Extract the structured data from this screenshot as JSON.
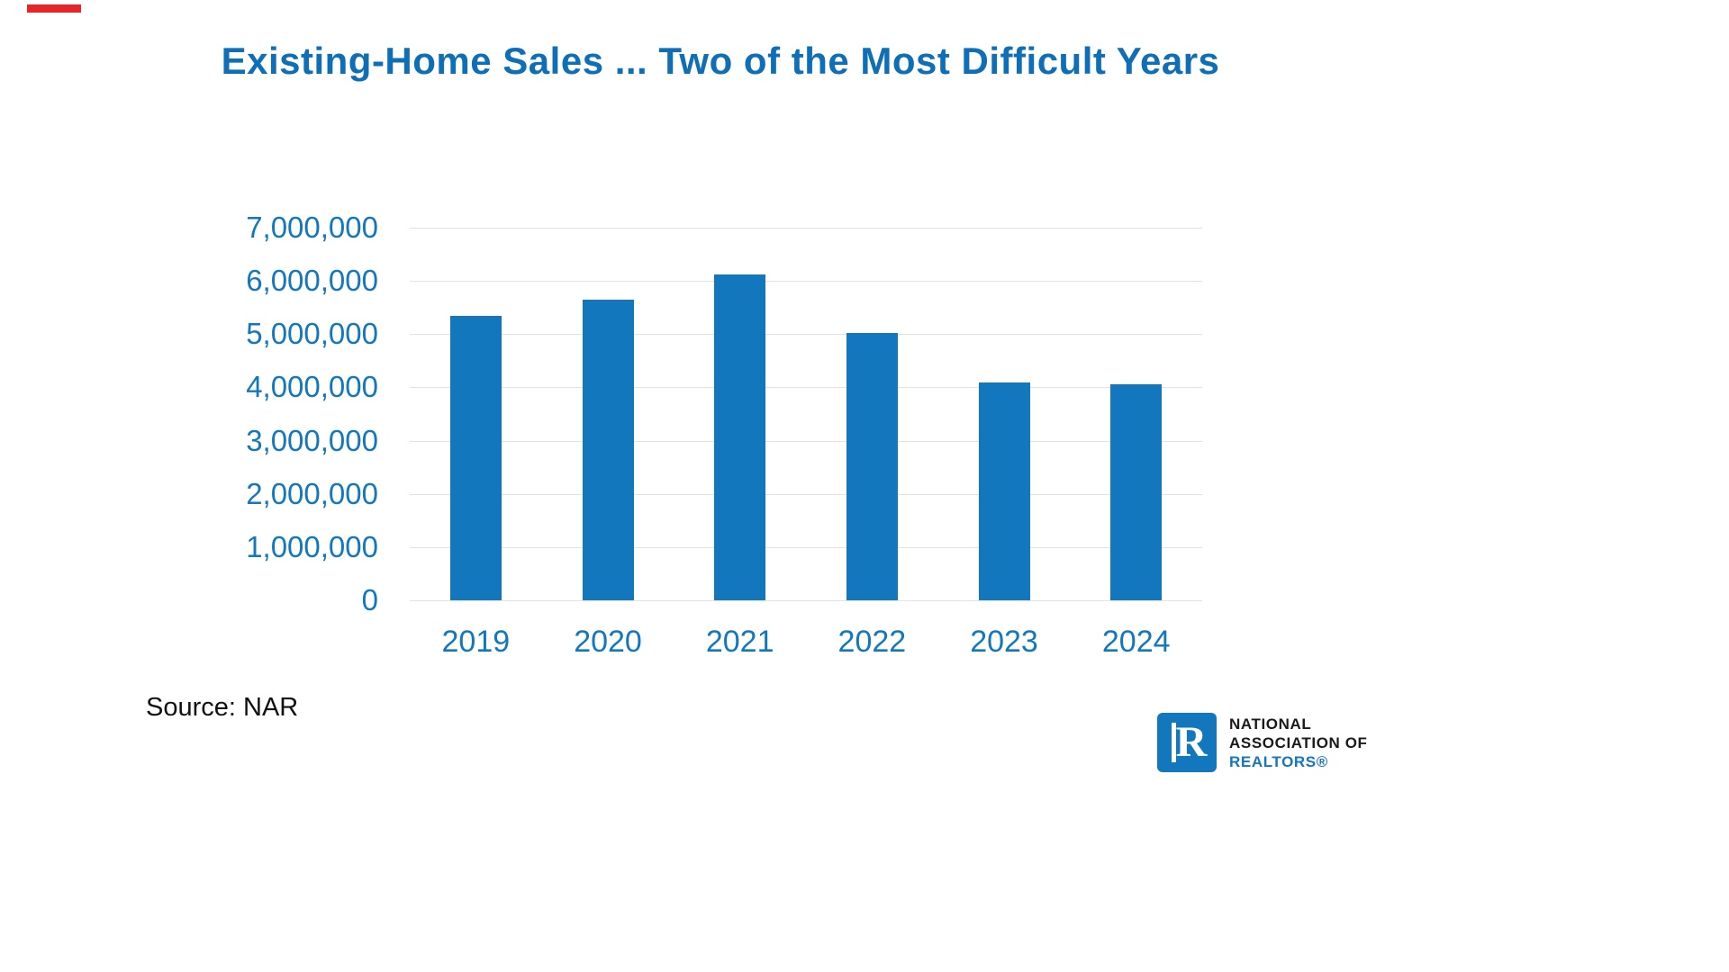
{
  "title": "Existing-Home Sales ... Two of the Most Difficult Years",
  "source": "Source: NAR",
  "logo": {
    "letter": "R",
    "line1": "NATIONAL",
    "line2": "ASSOCIATION OF",
    "line3": "REALTORS®"
  },
  "colors": {
    "bar": "#1277bd",
    "title": "#0e6fb7",
    "axis_label": "#1277bd",
    "gridline": "#e2e2e2",
    "red_accent": "#e8252a",
    "logo_blue": "#1277bd"
  },
  "chart_data": {
    "type": "bar",
    "title": "Existing-Home Sales ... Two of the Most Difficult Years",
    "categories": [
      "2019",
      "2020",
      "2021",
      "2022",
      "2023",
      "2024"
    ],
    "values": [
      5340000,
      5640000,
      6120000,
      5030000,
      4090000,
      4060000
    ],
    "xlabel": "",
    "ylabel": "",
    "ylim": [
      0,
      7000000
    ],
    "ytick_step": 1000000,
    "ytick_labels": [
      "7,000,000",
      "6,000,000",
      "5,000,000",
      "4,000,000",
      "3,000,000",
      "2,000,000",
      "1,000,000",
      "0"
    ],
    "grid": true,
    "legend": false,
    "source_note": "Source: NAR"
  }
}
